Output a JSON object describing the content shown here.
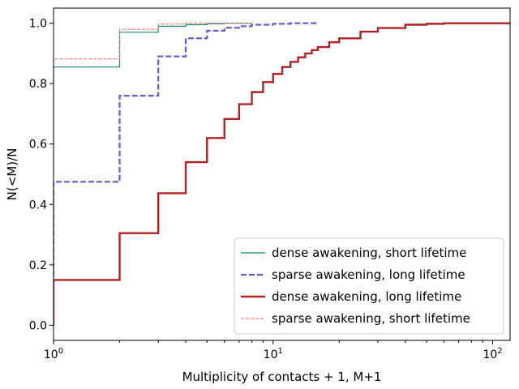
{
  "chart_data": {
    "type": "line",
    "xlabel": "Multiplicity of contacts + 1, M+1",
    "ylabel": "N(<M)/N",
    "xscale": "log",
    "xlim": [
      1,
      120
    ],
    "ylim": [
      -0.05,
      1.05
    ],
    "grid": false,
    "legend_position": "lower-right",
    "x_ticks": [
      {
        "value": 1,
        "base": "10",
        "exp": "0"
      },
      {
        "value": 10,
        "base": "10",
        "exp": "1"
      },
      {
        "value": 100,
        "base": "10",
        "exp": "2"
      }
    ],
    "y_ticks": [
      {
        "value": 0.0,
        "label": "0.0"
      },
      {
        "value": 0.2,
        "label": "0.2"
      },
      {
        "value": 0.4,
        "label": "0.4"
      },
      {
        "value": 0.6,
        "label": "0.6"
      },
      {
        "value": 0.8,
        "label": "0.8"
      },
      {
        "value": 1.0,
        "label": "1.0"
      }
    ],
    "series": [
      {
        "name": "dense awakening, short lifetime",
        "color": "#138a7a",
        "style": "solid",
        "steps": [
          [
            1,
            0.855
          ],
          [
            2,
            0.97
          ],
          [
            3,
            0.99
          ],
          [
            4,
            0.995
          ],
          [
            5,
            0.998
          ],
          [
            6,
            1.0
          ],
          [
            8,
            1.0
          ]
        ]
      },
      {
        "name": "sparse awakening, long lifetime",
        "color": "#6a5acd",
        "style": "dashed",
        "steps": [
          [
            1,
            0.475
          ],
          [
            2,
            0.76
          ],
          [
            3,
            0.89
          ],
          [
            4,
            0.95
          ],
          [
            5,
            0.975
          ],
          [
            6,
            0.985
          ],
          [
            7,
            0.99
          ],
          [
            8,
            0.995
          ],
          [
            10,
            0.998
          ],
          [
            12,
            1.0
          ],
          [
            16,
            1.0
          ]
        ]
      },
      {
        "name": "dense awakening, long lifetime",
        "color": "#b22222",
        "style": "solid",
        "steps": [
          [
            1,
            0.15
          ],
          [
            2,
            0.305
          ],
          [
            3,
            0.437
          ],
          [
            4,
            0.54
          ],
          [
            5,
            0.62
          ],
          [
            6,
            0.683
          ],
          [
            7,
            0.732
          ],
          [
            8,
            0.772
          ],
          [
            9,
            0.805
          ],
          [
            10,
            0.832
          ],
          [
            11,
            0.855
          ],
          [
            12,
            0.872
          ],
          [
            13,
            0.887
          ],
          [
            14,
            0.9
          ],
          [
            15,
            0.911
          ],
          [
            16,
            0.921
          ],
          [
            18,
            0.937
          ],
          [
            20,
            0.95
          ],
          [
            25,
            0.972
          ],
          [
            30,
            0.984
          ],
          [
            40,
            0.995
          ],
          [
            50,
            0.998
          ],
          [
            60,
            1.0
          ],
          [
            120,
            1.0
          ]
        ]
      },
      {
        "name": "sparse awakening, short lifetime",
        "color": "#fa8072",
        "style": "dashed-thin",
        "steps": [
          [
            1,
            0.882
          ],
          [
            2,
            0.98
          ],
          [
            3,
            0.997
          ],
          [
            4,
            1.0
          ],
          [
            8,
            1.0
          ]
        ]
      }
    ]
  }
}
